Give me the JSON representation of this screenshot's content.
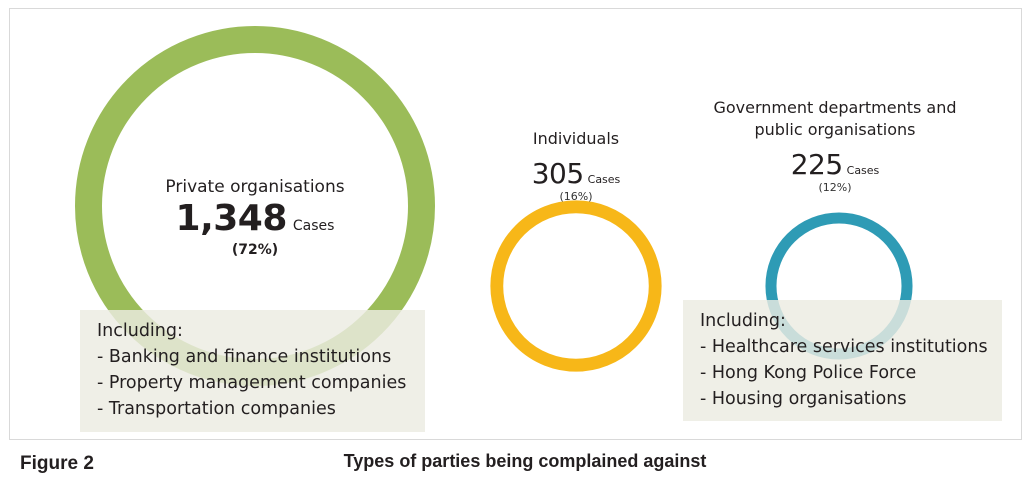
{
  "figure": {
    "label": "Figure 2",
    "title": "Types of parties being complained against"
  },
  "chart_data": {
    "type": "bubble",
    "unit": "Cases",
    "categories": [
      {
        "name": "Private organisations",
        "value": 1348,
        "value_text": "1,348",
        "percent": 72,
        "percent_text": "(72%)",
        "color": "#9bbc59"
      },
      {
        "name": "Individuals",
        "value": 305,
        "value_text": "305",
        "percent": 16,
        "percent_text": "(16%)",
        "color": "#f7b718"
      },
      {
        "name": "Government departments and public organisations",
        "value": 225,
        "value_text": "225",
        "percent": 12,
        "percent_text": "(12%)",
        "color": "#2e9bb5"
      }
    ]
  },
  "notes": {
    "private": {
      "heading": "Including:",
      "items": [
        "- Banking and finance institutions",
        "- Property management companies",
        "- Transportation companies"
      ]
    },
    "government": {
      "heading": "Including:",
      "items": [
        "- Healthcare services institutions",
        "- Hong Kong Police Force",
        "- Housing organisations"
      ]
    }
  },
  "labels": {
    "government_line1": "Government departments and",
    "government_line2": "public organisations"
  }
}
